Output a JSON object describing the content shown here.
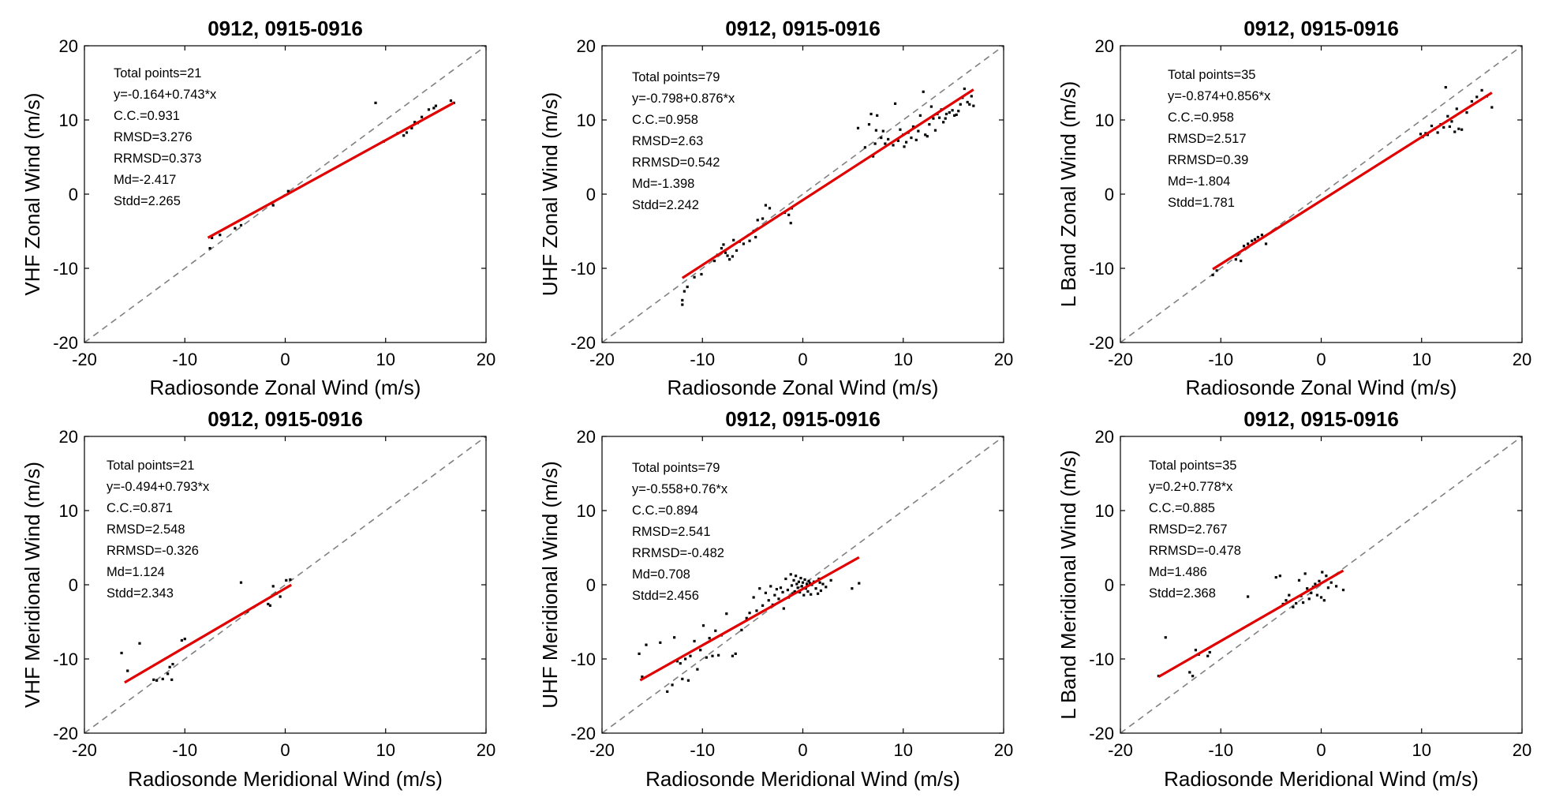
{
  "colors": {
    "fit_line": "#e00000",
    "identity_line": "#808080",
    "points": "#000000",
    "axes": "#000000"
  },
  "chart_data": [
    {
      "type": "scatter",
      "title": "0912, 0915-0916",
      "xlabel": "Radiosonde Zonal Wind (m/s)",
      "ylabel": "VHF Zonal Wind (m/s)",
      "xlim": [
        -20,
        20
      ],
      "ylim": [
        -20,
        20
      ],
      "xticks": [
        "-20",
        "-10",
        "0",
        "10",
        "20"
      ],
      "yticks": [
        "-20",
        "-10",
        "0",
        "10",
        "20"
      ],
      "stats": [
        "Total points=21",
        "y=-0.164+0.743*x",
        "C.C.=0.931",
        "RMSD=3.276",
        "RRMSD=0.373",
        "Md=-2.417",
        "Stdd=2.265"
      ],
      "fit": {
        "intercept": -0.164,
        "slope": 0.743,
        "x_range": [
          -7.7,
          16.8
        ]
      },
      "identity_line": true,
      "points": [
        [
          -7.5,
          -7.3
        ],
        [
          -7.3,
          -5.9
        ],
        [
          -6.5,
          -5.5
        ],
        [
          -5.0,
          -4.6
        ],
        [
          -4.4,
          -4.2
        ],
        [
          -1.2,
          -1.5
        ],
        [
          0.3,
          0.4
        ],
        [
          9.0,
          12.3
        ],
        [
          9.8,
          7.1
        ],
        [
          11.2,
          8.2
        ],
        [
          11.8,
          7.9
        ],
        [
          12.1,
          8.3
        ],
        [
          12.6,
          8.9
        ],
        [
          12.9,
          9.7
        ],
        [
          13.2,
          9.6
        ],
        [
          13.6,
          10.4
        ],
        [
          14.3,
          11.4
        ],
        [
          14.8,
          11.6
        ],
        [
          15.0,
          11.9
        ],
        [
          16.5,
          12.6
        ],
        [
          16.8,
          12.3
        ]
      ]
    },
    {
      "type": "scatter",
      "title": "0912, 0915-0916",
      "xlabel": "Radiosonde Zonal Wind (m/s)",
      "ylabel": "UHF Zonal Wind (m/s)",
      "xlim": [
        -20,
        20
      ],
      "ylim": [
        -20,
        20
      ],
      "xticks": [
        "-20",
        "-10",
        "0",
        "10",
        "20"
      ],
      "yticks": [
        "-20",
        "-10",
        "0",
        "10",
        "20"
      ],
      "stats": [
        "Total points=79",
        "y=-0.798+0.876*x",
        "C.C.=0.958",
        "RMSD=2.63",
        "RRMSD=0.542",
        "Md=-1.398",
        "Stdd=2.242"
      ],
      "fit": {
        "intercept": -0.798,
        "slope": 0.876,
        "x_range": [
          -12.0,
          17.0
        ]
      },
      "identity_line": true,
      "points": [
        [
          -12.0,
          -14.9
        ],
        [
          -12.0,
          -14.3
        ],
        [
          -11.8,
          -13.1
        ],
        [
          -11.5,
          -12.5
        ],
        [
          -10.8,
          -11.2
        ],
        [
          -10.1,
          -10.8
        ],
        [
          -8.8,
          -9.0
        ],
        [
          -8.5,
          -8.2
        ],
        [
          -8.1,
          -7.3
        ],
        [
          -7.9,
          -6.8
        ],
        [
          -7.7,
          -7.9
        ],
        [
          -7.5,
          -8.3
        ],
        [
          -7.3,
          -8.8
        ],
        [
          -7.0,
          -8.4
        ],
        [
          -6.9,
          -6.2
        ],
        [
          -6.6,
          -7.6
        ],
        [
          -6.3,
          -6.4
        ],
        [
          -5.9,
          -6.7
        ],
        [
          -5.3,
          -6.3
        ],
        [
          -4.9,
          -5.0
        ],
        [
          -4.7,
          -5.8
        ],
        [
          -4.5,
          -3.5
        ],
        [
          -4.0,
          -3.3
        ],
        [
          -3.7,
          -1.5
        ],
        [
          -3.3,
          -1.9
        ],
        [
          -1.8,
          -2.5
        ],
        [
          -1.4,
          -2.8
        ],
        [
          -1.2,
          -3.9
        ],
        [
          -1.1,
          -1.9
        ],
        [
          5.5,
          8.9
        ],
        [
          6.2,
          6.3
        ],
        [
          6.6,
          9.4
        ],
        [
          6.8,
          10.8
        ],
        [
          7.0,
          5.1
        ],
        [
          7.2,
          6.8
        ],
        [
          7.3,
          8.6
        ],
        [
          7.4,
          10.6
        ],
        [
          7.8,
          7.6
        ],
        [
          8.0,
          8.5
        ],
        [
          8.2,
          6.8
        ],
        [
          8.5,
          7.4
        ],
        [
          9.0,
          6.6
        ],
        [
          9.2,
          12.2
        ],
        [
          9.5,
          7.2
        ],
        [
          9.7,
          8.7
        ],
        [
          10.0,
          8.0
        ],
        [
          10.1,
          6.4
        ],
        [
          10.3,
          7.0
        ],
        [
          10.5,
          8.3
        ],
        [
          10.8,
          7.6
        ],
        [
          11.0,
          9.1
        ],
        [
          11.3,
          7.3
        ],
        [
          11.5,
          8.5
        ],
        [
          11.7,
          10.6
        ],
        [
          12.0,
          13.8
        ],
        [
          12.2,
          8.0
        ],
        [
          12.4,
          7.8
        ],
        [
          12.6,
          9.4
        ],
        [
          12.8,
          11.8
        ],
        [
          13.0,
          10.2
        ],
        [
          13.2,
          8.6
        ],
        [
          13.4,
          10.8
        ],
        [
          13.6,
          10.3
        ],
        [
          13.8,
          11.4
        ],
        [
          14.0,
          9.7
        ],
        [
          14.2,
          10.2
        ],
        [
          14.3,
          10.8
        ],
        [
          14.6,
          11.0
        ],
        [
          14.9,
          11.3
        ],
        [
          15.1,
          10.6
        ],
        [
          15.3,
          10.7
        ],
        [
          15.5,
          11.2
        ],
        [
          15.7,
          12.1
        ],
        [
          15.9,
          13.0
        ],
        [
          16.1,
          14.2
        ],
        [
          16.4,
          12.4
        ],
        [
          16.6,
          12.1
        ],
        [
          16.8,
          13.2
        ],
        [
          17.0,
          11.9
        ]
      ]
    },
    {
      "type": "scatter",
      "title": "0912, 0915-0916",
      "xlabel": "Radiosonde Zonal Wind (m/s)",
      "ylabel": "L Band Zonal Wind (m/s)",
      "xlim": [
        -20,
        20
      ],
      "ylim": [
        -20,
        20
      ],
      "xticks": [
        "-20",
        "-10",
        "0",
        "10",
        "20"
      ],
      "yticks": [
        "-20",
        "-10",
        "0",
        "10",
        "20"
      ],
      "stats": [
        "Total points=35",
        "y=-0.874+0.856*x",
        "C.C.=0.958",
        "RMSD=2.517",
        "RRMSD=0.39",
        "Md=-1.804",
        "Stdd=1.781"
      ],
      "fit": {
        "intercept": -0.874,
        "slope": 0.856,
        "x_range": [
          -10.8,
          17.0
        ]
      },
      "identity_line": true,
      "points": [
        [
          -10.8,
          -10.9
        ],
        [
          -10.4,
          -10.3
        ],
        [
          -8.5,
          -8.8
        ],
        [
          -8.3,
          -8.1
        ],
        [
          -8.0,
          -9.0
        ],
        [
          -7.7,
          -7.0
        ],
        [
          -7.3,
          -6.7
        ],
        [
          -6.9,
          -6.3
        ],
        [
          -6.6,
          -6.1
        ],
        [
          -6.3,
          -5.8
        ],
        [
          -5.9,
          -5.5
        ],
        [
          -5.5,
          -6.7
        ],
        [
          9.9,
          8.1
        ],
        [
          10.1,
          7.7
        ],
        [
          10.4,
          8.2
        ],
        [
          10.6,
          8.0
        ],
        [
          11.0,
          9.2
        ],
        [
          11.3,
          8.8
        ],
        [
          11.6,
          8.3
        ],
        [
          11.9,
          9.4
        ],
        [
          12.2,
          9.0
        ],
        [
          12.4,
          14.4
        ],
        [
          12.6,
          10.5
        ],
        [
          12.8,
          9.1
        ],
        [
          13.0,
          9.8
        ],
        [
          13.3,
          8.4
        ],
        [
          13.5,
          11.5
        ],
        [
          13.7,
          8.8
        ],
        [
          14.0,
          8.7
        ],
        [
          14.5,
          11.0
        ],
        [
          15.0,
          12.5
        ],
        [
          15.5,
          13.1
        ],
        [
          16.0,
          14.0
        ],
        [
          16.5,
          13.2
        ],
        [
          17.0,
          11.7
        ]
      ]
    },
    {
      "type": "scatter",
      "title": "0912, 0915-0916",
      "xlabel": "Radiosonde Meridional Wind (m/s)",
      "ylabel": "VHF Meridional Wind (m/s)",
      "xlim": [
        -20,
        20
      ],
      "ylim": [
        -20,
        20
      ],
      "xticks": [
        "-20",
        "-10",
        "0",
        "10",
        "20"
      ],
      "yticks": [
        "-20",
        "-10",
        "0",
        "10",
        "20"
      ],
      "stats": [
        "Total points=21",
        "y=-0.494+0.793*x",
        "C.C.=0.871",
        "RMSD=2.548",
        "RRMSD=-0.326",
        "Md=1.124",
        "Stdd=2.343"
      ],
      "fit": {
        "intercept": -0.494,
        "slope": 0.793,
        "x_range": [
          -16.0,
          0.6
        ]
      },
      "identity_line": true,
      "points": [
        [
          -16.3,
          -9.2
        ],
        [
          -15.7,
          -11.6
        ],
        [
          -14.5,
          -7.9
        ],
        [
          -13.1,
          -12.8
        ],
        [
          -12.8,
          -12.9
        ],
        [
          -12.2,
          -12.7
        ],
        [
          -11.7,
          -12.0
        ],
        [
          -11.3,
          -12.8
        ],
        [
          -11.5,
          -11.1
        ],
        [
          -11.2,
          -10.7
        ],
        [
          -10.3,
          -7.5
        ],
        [
          -10.0,
          -7.3
        ],
        [
          -4.4,
          0.3
        ],
        [
          -3.8,
          -3.6
        ],
        [
          -1.7,
          -2.6
        ],
        [
          -1.5,
          -2.8
        ],
        [
          -1.2,
          -0.2
        ],
        [
          -0.9,
          -1.2
        ],
        [
          -0.5,
          -1.6
        ],
        [
          0.1,
          0.6
        ],
        [
          0.5,
          0.7
        ]
      ]
    },
    {
      "type": "scatter",
      "title": "0912, 0915-0916",
      "xlabel": "Radiosonde Meridional Wind (m/s)",
      "ylabel": "UHF Meridional Wind (m/s)",
      "xlim": [
        -20,
        20
      ],
      "ylim": [
        -20,
        20
      ],
      "xticks": [
        "-20",
        "-10",
        "0",
        "10",
        "20"
      ],
      "yticks": [
        "-20",
        "-10",
        "0",
        "10",
        "20"
      ],
      "stats": [
        "Total points=79",
        "y=-0.558+0.76*x",
        "C.C.=0.894",
        "RMSD=2.541",
        "RRMSD=-0.482",
        "Md=0.708",
        "Stdd=2.456"
      ],
      "fit": {
        "intercept": -0.558,
        "slope": 0.76,
        "x_range": [
          -16.2,
          5.6
        ]
      },
      "identity_line": true,
      "points": [
        [
          -16.3,
          -9.3
        ],
        [
          -16.0,
          -12.4
        ],
        [
          -15.6,
          -8.1
        ],
        [
          -14.2,
          -7.8
        ],
        [
          -13.5,
          -14.4
        ],
        [
          -13.0,
          -13.5
        ],
        [
          -12.8,
          -7.1
        ],
        [
          -12.5,
          -10.3
        ],
        [
          -12.2,
          -10.6
        ],
        [
          -12.0,
          -12.7
        ],
        [
          -11.7,
          -10.0
        ],
        [
          -11.4,
          -12.9
        ],
        [
          -11.2,
          -9.6
        ],
        [
          -10.8,
          -7.6
        ],
        [
          -10.5,
          -11.4
        ],
        [
          -10.2,
          -8.8
        ],
        [
          -9.9,
          -5.5
        ],
        [
          -9.6,
          -9.8
        ],
        [
          -9.3,
          -7.2
        ],
        [
          -9.0,
          -9.6
        ],
        [
          -8.7,
          -6.2
        ],
        [
          -8.4,
          -9.5
        ],
        [
          -8.1,
          -6.8
        ],
        [
          -7.6,
          -3.9
        ],
        [
          -7.0,
          -9.6
        ],
        [
          -6.7,
          -9.3
        ],
        [
          -6.1,
          -6.1
        ],
        [
          -5.6,
          -4.5
        ],
        [
          -5.3,
          -3.8
        ],
        [
          -4.9,
          -1.7
        ],
        [
          -4.6,
          -3.5
        ],
        [
          -4.3,
          -0.5
        ],
        [
          -4.0,
          -2.8
        ],
        [
          -3.7,
          -1.1
        ],
        [
          -3.4,
          -2.1
        ],
        [
          -3.2,
          -0.2
        ],
        [
          -3.0,
          -2.7
        ],
        [
          -2.8,
          -1.4
        ],
        [
          -2.6,
          -0.6
        ],
        [
          -2.4,
          -1.9
        ],
        [
          -2.2,
          -0.4
        ],
        [
          -2.0,
          -1.0
        ],
        [
          -1.9,
          -3.2
        ],
        [
          -1.7,
          0.8
        ],
        [
          -1.5,
          -0.7
        ],
        [
          -1.4,
          -1.7
        ],
        [
          -1.2,
          1.4
        ],
        [
          -1.1,
          -0.1
        ],
        [
          -1.0,
          -1.2
        ],
        [
          -0.9,
          0.6
        ],
        [
          -0.8,
          -0.9
        ],
        [
          -0.7,
          1.2
        ],
        [
          -0.6,
          0.1
        ],
        [
          -0.5,
          -0.4
        ],
        [
          -0.4,
          0.4
        ],
        [
          -0.3,
          -1.0
        ],
        [
          -0.2,
          0.9
        ],
        [
          -0.1,
          -0.2
        ],
        [
          0.0,
          0.3
        ],
        [
          0.1,
          -1.4
        ],
        [
          0.2,
          0.7
        ],
        [
          0.3,
          -0.5
        ],
        [
          0.4,
          0.1
        ],
        [
          0.5,
          -0.9
        ],
        [
          0.6,
          0.5
        ],
        [
          0.7,
          0.2
        ],
        [
          0.8,
          -1.3
        ],
        [
          0.9,
          0.0
        ],
        [
          1.1,
          0.4
        ],
        [
          1.3,
          -0.5
        ],
        [
          1.5,
          -1.2
        ],
        [
          1.6,
          0.8
        ],
        [
          1.7,
          0.3
        ],
        [
          1.8,
          -0.8
        ],
        [
          2.0,
          0.1
        ],
        [
          2.3,
          -0.3
        ],
        [
          2.8,
          0.6
        ],
        [
          4.9,
          -0.5
        ],
        [
          5.6,
          0.2
        ]
      ]
    },
    {
      "type": "scatter",
      "title": "0912, 0915-0916",
      "xlabel": "Radiosonde Meridional Wind (m/s)",
      "ylabel": "L Band Meridional Wind (m/s)",
      "xlim": [
        -20,
        20
      ],
      "ylim": [
        -20,
        20
      ],
      "xticks": [
        "-20",
        "-10",
        "0",
        "10",
        "20"
      ],
      "yticks": [
        "-20",
        "-10",
        "0",
        "10",
        "20"
      ],
      "stats": [
        "Total points=35",
        "y=0.2+0.778*x",
        "C.C.=0.885",
        "RMSD=2.767",
        "RRMSD=-0.478",
        "Md=1.486",
        "Stdd=2.368"
      ],
      "fit": {
        "intercept": 0.2,
        "slope": 0.778,
        "x_range": [
          -16.2,
          2.2
        ]
      },
      "identity_line": true,
      "points": [
        [
          -16.2,
          -12.3
        ],
        [
          -15.5,
          -7.1
        ],
        [
          -13.1,
          -11.8
        ],
        [
          -12.8,
          -12.3
        ],
        [
          -12.5,
          -8.8
        ],
        [
          -12.2,
          -9.4
        ],
        [
          -11.3,
          -9.6
        ],
        [
          -11.1,
          -9.1
        ],
        [
          -7.3,
          -1.6
        ],
        [
          -4.5,
          1.0
        ],
        [
          -4.1,
          1.2
        ],
        [
          -3.8,
          -2.6
        ],
        [
          -3.5,
          -2.1
        ],
        [
          -3.2,
          -1.4
        ],
        [
          -2.8,
          -3.0
        ],
        [
          -2.5,
          -2.5
        ],
        [
          -2.2,
          0.6
        ],
        [
          -2.0,
          -1.5
        ],
        [
          -1.8,
          -2.4
        ],
        [
          -1.6,
          1.5
        ],
        [
          -1.4,
          -0.5
        ],
        [
          -1.2,
          -1.9
        ],
        [
          -1.0,
          -1.1
        ],
        [
          -0.8,
          -0.3
        ],
        [
          -0.6,
          0.1
        ],
        [
          -0.4,
          -1.4
        ],
        [
          -0.2,
          0.5
        ],
        [
          0.0,
          -1.7
        ],
        [
          0.1,
          1.7
        ],
        [
          0.3,
          -2.1
        ],
        [
          0.5,
          1.2
        ],
        [
          0.7,
          -0.4
        ],
        [
          1.0,
          0.3
        ],
        [
          1.5,
          -0.2
        ],
        [
          2.2,
          -0.7
        ]
      ]
    }
  ]
}
